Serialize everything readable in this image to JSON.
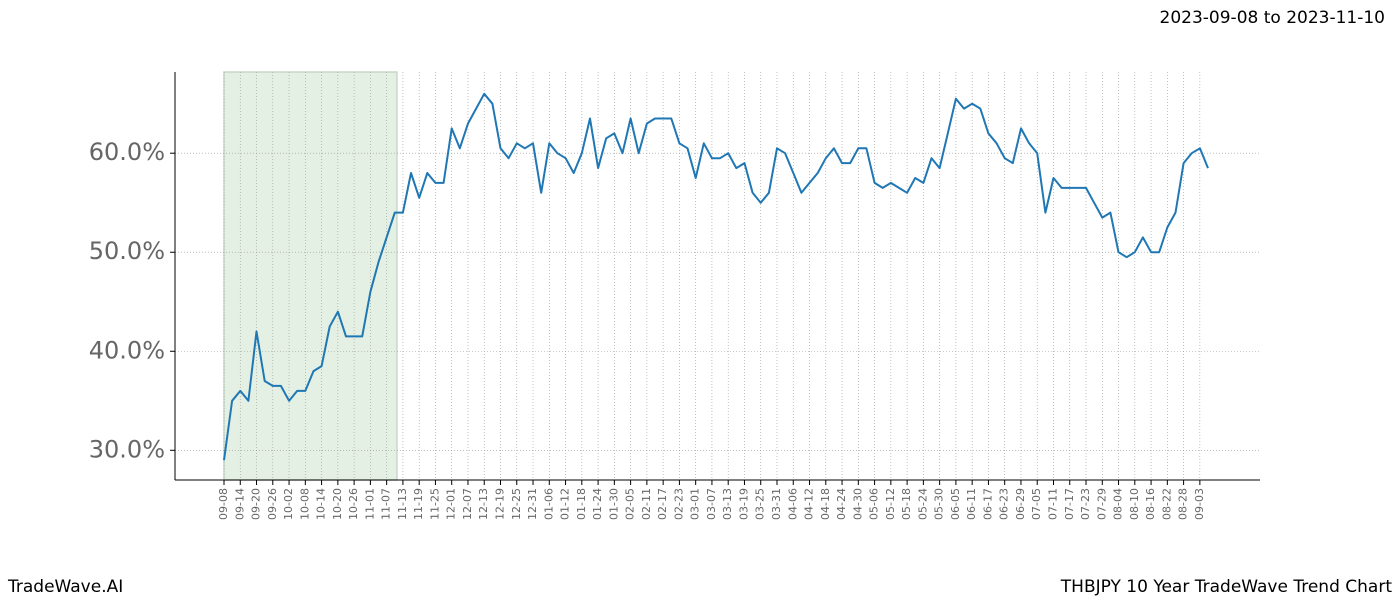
{
  "header": "2023-09-08 to 2023-11-10",
  "footer": {
    "left": "TradeWave.AI",
    "right": "THBJPY 10 Year TradeWave Trend Chart"
  },
  "chart_data": {
    "type": "line",
    "categories": [
      "09-08",
      null,
      "09-14",
      null,
      "09-20",
      null,
      "09-26",
      null,
      "10-02",
      null,
      "10-08",
      null,
      "10-14",
      null,
      "10-20",
      null,
      "10-26",
      null,
      "11-01",
      null,
      "11-07",
      null,
      "11-13",
      null,
      "11-19",
      null,
      "11-25",
      null,
      "12-01",
      null,
      "12-07",
      null,
      "12-13",
      null,
      "12-19",
      null,
      "12-25",
      null,
      "12-31",
      null,
      "01-06",
      null,
      "01-12",
      null,
      "01-18",
      null,
      "01-24",
      null,
      "01-30",
      null,
      "02-05",
      null,
      "02-11",
      null,
      "02-17",
      null,
      "02-23",
      null,
      "03-01",
      null,
      "03-07",
      null,
      "03-13",
      null,
      "03-19",
      null,
      "03-25",
      null,
      "03-31",
      null,
      "04-06",
      null,
      "04-12",
      null,
      "04-18",
      null,
      "04-24",
      null,
      "04-30",
      null,
      "05-06",
      null,
      "05-12",
      null,
      "05-18",
      null,
      "05-24",
      null,
      "05-30",
      null,
      "06-05",
      null,
      "06-11",
      null,
      "06-17",
      null,
      "06-23",
      null,
      "06-29",
      null,
      "07-05",
      null,
      "07-11",
      null,
      "07-17",
      null,
      "07-23",
      null,
      "07-29",
      null,
      "08-04",
      null,
      "08-10",
      null,
      "08-16",
      null,
      "08-22",
      null,
      "08-28",
      null,
      "09-03",
      null
    ],
    "series": [
      {
        "color": "#1f77b4",
        "values": [
          29,
          35,
          36,
          35,
          42,
          37,
          36.5,
          36.5,
          35,
          36,
          36,
          38,
          38.5,
          42.5,
          44,
          41.5,
          41.5,
          41.5,
          46,
          49,
          51.5,
          54,
          54,
          58,
          55.5,
          58,
          57,
          57,
          62.5,
          60.5,
          63,
          64.5,
          66,
          65,
          60.5,
          59.5,
          61,
          60.5,
          61,
          56,
          61,
          60,
          59.5,
          58,
          60,
          63.5,
          58.5,
          61.5,
          62,
          60,
          63.5,
          60,
          63,
          63.5,
          63.5,
          63.5,
          61,
          60.5,
          57.5,
          61,
          59.5,
          59.5,
          60,
          58.5,
          59,
          56,
          55,
          56,
          60.5,
          60,
          58,
          56,
          57,
          58,
          59.5,
          60.5,
          59,
          59,
          60.5,
          60.5,
          57,
          56.5,
          57,
          56.5,
          56,
          57.5,
          57,
          59.5,
          58.5,
          62,
          65.5,
          64.5,
          65,
          64.5,
          62,
          61,
          59.5,
          59,
          62.5,
          61,
          60,
          54,
          57.5,
          56.5,
          56.5,
          56.5,
          56.5,
          55,
          53.5,
          54,
          50,
          49.5,
          50,
          51.5,
          50,
          50,
          52.5,
          54,
          59,
          60,
          60.5,
          58.5
        ]
      }
    ],
    "ylim": [
      27,
      68.2
    ],
    "yticks": [
      {
        "value": 30,
        "label": "30.0%"
      },
      {
        "value": 40,
        "label": "40.0%"
      },
      {
        "value": 50,
        "label": "50.0%"
      },
      {
        "value": 60,
        "label": "60.0%"
      }
    ],
    "grid": true,
    "highlight": {
      "from": "09-08",
      "to": "11-13",
      "color": "#e3f0e3"
    }
  }
}
